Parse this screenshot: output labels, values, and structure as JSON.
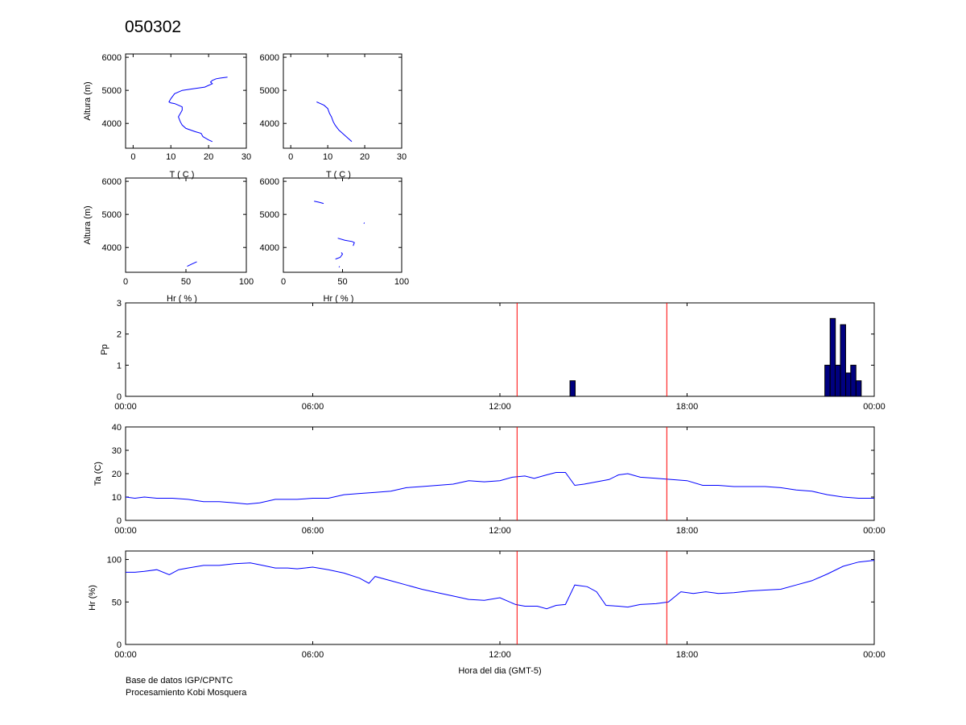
{
  "title": "050302",
  "credits": {
    "line1": "Base de datos IGP/CPNTC",
    "line2": "Procesamiento Kobi Mosquera"
  },
  "colors": {
    "series": "#0000ff",
    "bars": "#000080",
    "markers": "#ff0000",
    "axes": "#000000"
  },
  "chart_data": [
    {
      "id": "profile-temp-1",
      "type": "line",
      "title": "",
      "xlabel": "T ( C )",
      "ylabel": "Altura (m)",
      "xlim": [
        -2,
        30
      ],
      "ylim": [
        3250,
        6100
      ],
      "xticks": [
        0,
        10,
        20,
        30
      ],
      "yticks": [
        4000,
        5000,
        6000
      ],
      "series": [
        {
          "x": [
            21,
            20,
            18.5,
            18,
            16.5,
            14,
            13,
            12.5,
            12,
            12.5,
            13,
            13,
            12,
            11,
            10,
            9.5,
            10,
            11,
            13,
            16,
            19,
            20,
            21,
            20.5,
            21,
            22,
            23,
            25
          ],
          "y": [
            3450,
            3500,
            3600,
            3700,
            3750,
            3850,
            3950,
            4050,
            4200,
            4300,
            4400,
            4500,
            4550,
            4600,
            4620,
            4650,
            4750,
            4900,
            5000,
            5050,
            5100,
            5150,
            5200,
            5250,
            5300,
            5350,
            5370,
            5400
          ]
        }
      ]
    },
    {
      "id": "profile-temp-2",
      "type": "line",
      "title": "",
      "xlabel": "T ( C )",
      "ylabel": "",
      "xlim": [
        -2,
        30
      ],
      "ylim": [
        3250,
        6100
      ],
      "xticks": [
        0,
        10,
        20,
        30
      ],
      "yticks": [
        4000,
        5000,
        6000
      ],
      "series": [
        {
          "x": [
            16.5,
            15,
            13,
            12,
            11.5,
            11,
            10.5,
            10,
            9,
            7
          ],
          "y": [
            3450,
            3600,
            3800,
            3950,
            4050,
            4200,
            4300,
            4450,
            4550,
            4650
          ]
        }
      ]
    },
    {
      "id": "profile-hr-1",
      "type": "line",
      "title": "",
      "xlabel": "Hr ( % )",
      "ylabel": "Altura (m)",
      "xlim": [
        0,
        100
      ],
      "ylim": [
        3250,
        6100
      ],
      "xticks": [
        0,
        50,
        100
      ],
      "yticks": [
        4000,
        5000,
        6000
      ],
      "series": [
        {
          "segments": [
            {
              "x": [
                51,
                55,
                59
              ],
              "y": [
                3430,
                3500,
                3570
              ]
            }
          ]
        }
      ]
    },
    {
      "id": "profile-hr-2",
      "type": "line",
      "title": "",
      "xlabel": "Hr ( % )",
      "ylabel": "",
      "xlim": [
        0,
        100
      ],
      "ylim": [
        3250,
        6100
      ],
      "xticks": [
        0,
        50,
        100
      ],
      "yticks": [
        4000,
        5000,
        6000
      ],
      "series": [
        {
          "segments": [
            {
              "x": [
                26,
                30,
                34
              ],
              "y": [
                5400,
                5370,
                5330
              ]
            },
            {
              "x": [
                68,
                68.5
              ],
              "y": [
                4720,
                4750
              ]
            },
            {
              "x": [
                46,
                52,
                58,
                60,
                59
              ],
              "y": [
                4280,
                4220,
                4180,
                4150,
                4050
              ]
            },
            {
              "x": [
                44,
                48,
                50,
                49
              ],
              "y": [
                3650,
                3700,
                3800,
                3850
              ]
            },
            {
              "x": [
                47,
                47.5
              ],
              "y": [
                3400,
                3430
              ]
            }
          ]
        }
      ]
    },
    {
      "id": "precip-series",
      "type": "bar",
      "title": "",
      "xlabel": "",
      "ylabel": "Pp",
      "xlim": [
        0,
        24
      ],
      "ylim": [
        0,
        3
      ],
      "xticks": [
        0,
        6,
        12,
        18,
        24
      ],
      "xtick_labels": [
        "00:00",
        "06:00",
        "12:00",
        "18:00",
        "00:00"
      ],
      "yticks": [
        0,
        1,
        2,
        3
      ],
      "bar_width_hours": 0.1667,
      "markers": [
        12.55,
        17.35
      ],
      "bars": [
        {
          "x": 14.33,
          "value": 0.5
        },
        {
          "x": 22.5,
          "value": 1
        },
        {
          "x": 22.67,
          "value": 2.5
        },
        {
          "x": 22.83,
          "value": 1
        },
        {
          "x": 23.0,
          "value": 2.3
        },
        {
          "x": 23.17,
          "value": 0.75
        },
        {
          "x": 23.33,
          "value": 1
        },
        {
          "x": 23.5,
          "value": 0.5
        }
      ]
    },
    {
      "id": "temp-series",
      "type": "line",
      "title": "",
      "xlabel": "",
      "ylabel": "Ta (C)",
      "xlim": [
        0,
        24
      ],
      "ylim": [
        0,
        40
      ],
      "xticks": [
        0,
        6,
        12,
        18,
        24
      ],
      "xtick_labels": [
        "00:00",
        "06:00",
        "12:00",
        "18:00",
        "00:00"
      ],
      "yticks": [
        0,
        10,
        20,
        30,
        40
      ],
      "markers": [
        12.55,
        17.35
      ],
      "series": [
        {
          "x": [
            0,
            0.3,
            0.6,
            1,
            1.5,
            2,
            2.5,
            3,
            3.5,
            3.9,
            4.3,
            4.8,
            5.5,
            6,
            6.5,
            7,
            7.5,
            8,
            8.5,
            9,
            9.5,
            10,
            10.5,
            11,
            11.5,
            12,
            12.4,
            12.8,
            13.1,
            13.5,
            13.8,
            14.1,
            14.4,
            14.7,
            15.1,
            15.5,
            15.8,
            16.1,
            16.5,
            17,
            17.5,
            18,
            18.5,
            19,
            19.5,
            20,
            20.5,
            21,
            21.5,
            22,
            22.5,
            23,
            23.5,
            24
          ],
          "y": [
            10,
            9.5,
            10,
            9.5,
            9.5,
            9,
            8,
            8,
            7.5,
            7,
            7.5,
            9,
            9,
            9.5,
            9.5,
            11,
            11.5,
            12,
            12.5,
            14,
            14.5,
            15,
            15.5,
            17,
            16.5,
            17,
            18.5,
            19,
            18,
            19.5,
            20.5,
            20.5,
            15,
            15.5,
            16.5,
            17.5,
            19.5,
            20,
            18.5,
            18,
            17.5,
            17,
            15,
            15,
            14.5,
            14.5,
            14.5,
            14,
            13,
            12.5,
            11,
            10,
            9.5,
            9.5
          ]
        }
      ]
    },
    {
      "id": "hr-series",
      "type": "line",
      "title": "",
      "xlabel": "Hora del dia (GMT-5)",
      "ylabel": "Hr (%)",
      "xlim": [
        0,
        24
      ],
      "ylim": [
        0,
        110
      ],
      "xticks": [
        0,
        6,
        12,
        18,
        24
      ],
      "xtick_labels": [
        "00:00",
        "06:00",
        "12:00",
        "18:00",
        "00:00"
      ],
      "yticks": [
        0,
        50,
        100
      ],
      "markers": [
        12.55,
        17.35
      ],
      "series": [
        {
          "x": [
            0,
            0.3,
            0.6,
            1,
            1.4,
            1.7,
            2,
            2.5,
            3,
            3.5,
            4,
            4.4,
            4.8,
            5.2,
            5.5,
            6,
            6.5,
            7,
            7.5,
            7.8,
            8,
            8.5,
            9,
            9.5,
            10,
            10.5,
            11,
            11.5,
            12,
            12.5,
            12.8,
            13.2,
            13.5,
            13.8,
            14.1,
            14.4,
            14.8,
            15.1,
            15.4,
            15.8,
            16.1,
            16.5,
            17,
            17.4,
            17.8,
            18.2,
            18.6,
            19,
            19.5,
            20,
            20.5,
            21,
            21.5,
            22,
            22.5,
            23,
            23.5,
            24
          ],
          "y": [
            85,
            85,
            86,
            88,
            82,
            88,
            90,
            93,
            93,
            95,
            96,
            93,
            90,
            90,
            89,
            91,
            88,
            84,
            78,
            72,
            80,
            75,
            70,
            65,
            61,
            57,
            53,
            52,
            55,
            47,
            45,
            45,
            42,
            46,
            47,
            70,
            68,
            62,
            46,
            45,
            44,
            47,
            48,
            50,
            62,
            60,
            62,
            60,
            61,
            63,
            64,
            65,
            70,
            75,
            83,
            92,
            97,
            99
          ]
        }
      ]
    }
  ]
}
